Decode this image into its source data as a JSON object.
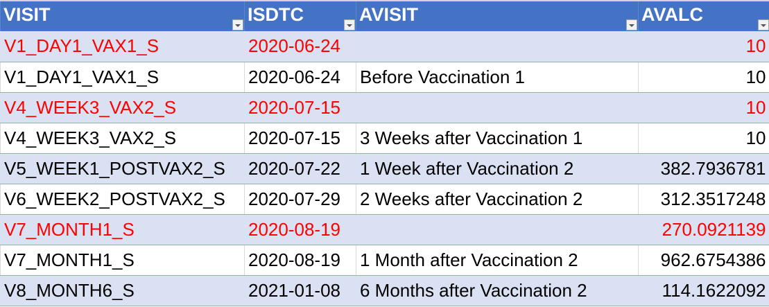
{
  "columns": [
    "VISIT",
    "ISDTC",
    "AVISIT",
    "AVALC"
  ],
  "rows": [
    {
      "visit": "V1_DAY1_VAX1_S",
      "isdtc": "2020-06-24",
      "avisit": "",
      "avalc": "10",
      "highlight": true
    },
    {
      "visit": "V1_DAY1_VAX1_S",
      "isdtc": "2020-06-24",
      "avisit": "Before Vaccination 1",
      "avalc": "10",
      "highlight": false
    },
    {
      "visit": "V4_WEEK3_VAX2_S",
      "isdtc": "2020-07-15",
      "avisit": "",
      "avalc": "10",
      "highlight": true
    },
    {
      "visit": "V4_WEEK3_VAX2_S",
      "isdtc": "2020-07-15",
      "avisit": "3 Weeks after Vaccination 1",
      "avalc": "10",
      "highlight": false
    },
    {
      "visit": "V5_WEEK1_POSTVAX2_S",
      "isdtc": "2020-07-22",
      "avisit": "1 Week after Vaccination 2",
      "avalc": "382.7936781",
      "highlight": false
    },
    {
      "visit": "V6_WEEK2_POSTVAX2_S",
      "isdtc": "2020-07-29",
      "avisit": "2 Weeks after Vaccination 2",
      "avalc": "312.3517248",
      "highlight": false
    },
    {
      "visit": "V7_MONTH1_S",
      "isdtc": "2020-08-19",
      "avisit": "",
      "avalc": "270.0921139",
      "highlight": true
    },
    {
      "visit": "V7_MONTH1_S",
      "isdtc": "2020-08-19",
      "avisit": "1 Month after Vaccination 2",
      "avalc": "962.6754386",
      "highlight": false
    },
    {
      "visit": "V8_MONTH6_S",
      "isdtc": "2021-01-08",
      "avisit": "6 Months after Vaccination 2",
      "avalc": "114.1622092",
      "highlight": false
    }
  ],
  "colors": {
    "header": "#4472C4",
    "band": "#D9E1F2",
    "highlight_text": "#FF0000"
  }
}
